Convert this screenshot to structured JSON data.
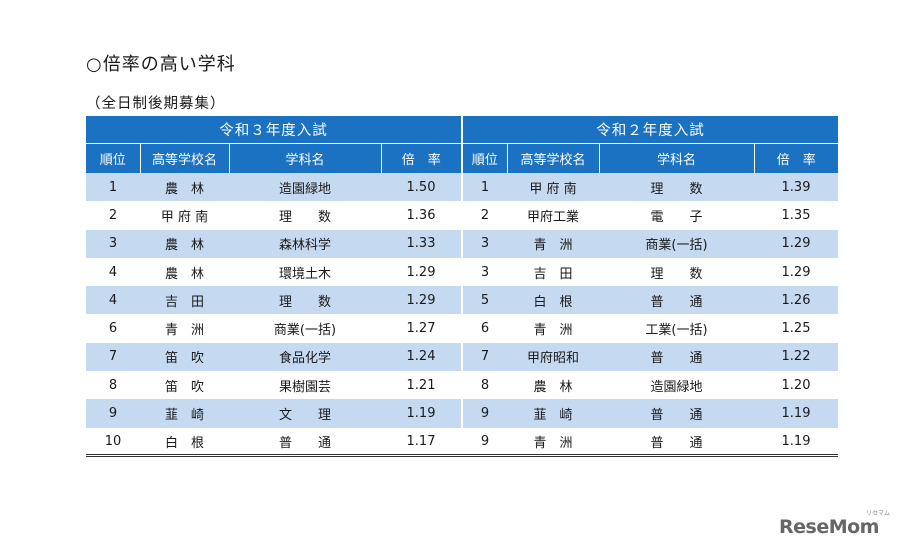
{
  "title": "○倍率の高い学科",
  "subtitle": "（全日制後期募集）",
  "years": [
    "令和３年度入試",
    "令和２年度入試"
  ],
  "columns": [
    "順位",
    "高等学校名",
    "学科名",
    "倍　率"
  ],
  "rows": [
    {
      "left": {
        "rank": "1",
        "school": "農　林",
        "dept": "造園緑地",
        "rate": "1.50"
      },
      "right": {
        "rank": "1",
        "school": "甲 府 南",
        "dept": "理　　数",
        "rate": "1.39"
      }
    },
    {
      "left": {
        "rank": "2",
        "school": "甲 府 南",
        "dept": "理　　数",
        "rate": "1.36"
      },
      "right": {
        "rank": "2",
        "school": "甲府工業",
        "dept": "電　　子",
        "rate": "1.35"
      }
    },
    {
      "left": {
        "rank": "3",
        "school": "農　林",
        "dept": "森林科学",
        "rate": "1.33"
      },
      "right": {
        "rank": "3",
        "school": "青　洲",
        "dept": "商業(一括)",
        "rate": "1.29"
      }
    },
    {
      "left": {
        "rank": "4",
        "school": "農　林",
        "dept": "環境土木",
        "rate": "1.29"
      },
      "right": {
        "rank": "3",
        "school": "吉　田",
        "dept": "理　　数",
        "rate": "1.29"
      }
    },
    {
      "left": {
        "rank": "4",
        "school": "吉　田",
        "dept": "理　　数",
        "rate": "1.29"
      },
      "right": {
        "rank": "5",
        "school": "白　根",
        "dept": "普　　通",
        "rate": "1.26"
      }
    },
    {
      "left": {
        "rank": "6",
        "school": "青　洲",
        "dept": "商業(一括)",
        "rate": "1.27"
      },
      "right": {
        "rank": "6",
        "school": "青　洲",
        "dept": "工業(一括)",
        "rate": "1.25"
      }
    },
    {
      "left": {
        "rank": "7",
        "school": "笛　吹",
        "dept": "食品化学",
        "rate": "1.24"
      },
      "right": {
        "rank": "7",
        "school": "甲府昭和",
        "dept": "普　　通",
        "rate": "1.22"
      }
    },
    {
      "left": {
        "rank": "8",
        "school": "笛　吹",
        "dept": "果樹園芸",
        "rate": "1.21"
      },
      "right": {
        "rank": "8",
        "school": "農　林",
        "dept": "造園緑地",
        "rate": "1.20"
      }
    },
    {
      "left": {
        "rank": "9",
        "school": "韮　崎",
        "dept": "文　　理",
        "rate": "1.19"
      },
      "right": {
        "rank": "9",
        "school": "韮　崎",
        "dept": "普　　通",
        "rate": "1.19"
      }
    },
    {
      "left": {
        "rank": "10",
        "school": "白　根",
        "dept": "普　　通",
        "rate": "1.17"
      },
      "right": {
        "rank": "9",
        "school": "青　洲",
        "dept": "普　　通",
        "rate": "1.19"
      }
    }
  ],
  "logo": "ReseMom",
  "logo_sub": "リセマム",
  "colors": {
    "header_bg": "#1b72c2",
    "stripe": "#c5d9f1"
  }
}
